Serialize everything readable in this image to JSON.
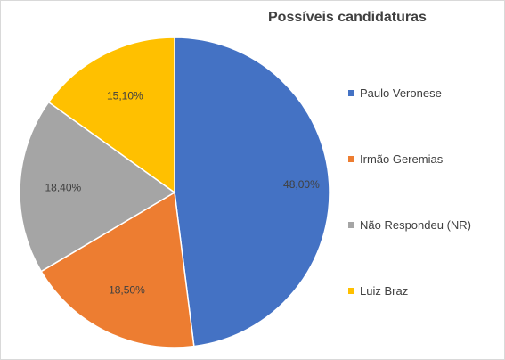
{
  "chart_data": {
    "type": "pie",
    "title": "Possíveis candidaturas",
    "categories": [
      "Paulo Veronese",
      "Irmão Geremias",
      "Não Respondeu (NR)",
      "Luiz Braz"
    ],
    "values": [
      48.0,
      18.5,
      18.4,
      15.1
    ],
    "data_labels": [
      "48,00%",
      "18,50%",
      "18,40%",
      "15,10%"
    ],
    "colors": [
      "#4472C4",
      "#ED7D31",
      "#A5A5A5",
      "#FFC000"
    ],
    "legend_position": "right"
  }
}
